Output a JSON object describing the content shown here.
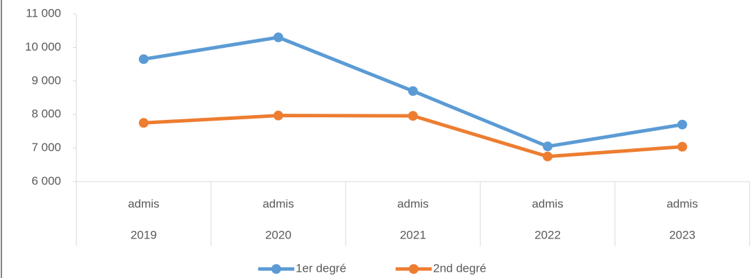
{
  "chart_data": {
    "type": "line",
    "categories": [
      "2019",
      "2020",
      "2021",
      "2022",
      "2023"
    ],
    "sub_categories": [
      "admis",
      "admis",
      "admis",
      "admis",
      "admis"
    ],
    "series": [
      {
        "name": "1er degré",
        "color": "#5b9bd5",
        "values": [
          9650,
          10300,
          8700,
          7050,
          7700
        ]
      },
      {
        "name": "2nd degré",
        "color": "#ed7d31",
        "values": [
          7750,
          7970,
          7960,
          6750,
          7040
        ]
      }
    ],
    "ylim": [
      6000,
      11000
    ],
    "yticks": [
      {
        "value": 6000,
        "label": "6 000"
      },
      {
        "value": 7000,
        "label": "7 000"
      },
      {
        "value": 8000,
        "label": "8 000"
      },
      {
        "value": 9000,
        "label": "9 000"
      },
      {
        "value": 10000,
        "label": "10 000"
      },
      {
        "value": 11000,
        "label": "11 000"
      }
    ],
    "legend": "bottom"
  }
}
